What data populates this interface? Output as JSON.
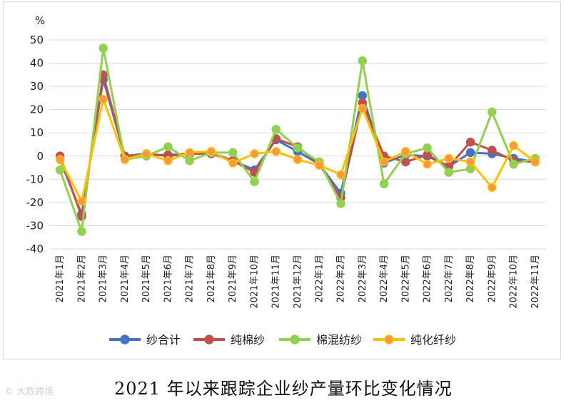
{
  "caption": "2021 年以来跟踪企业纱产量环比变化情况",
  "watermark": "© 大数跨境",
  "chart_data": {
    "type": "line",
    "unit_label": "%",
    "ylim": [
      -40,
      50
    ],
    "yticks": [
      -40,
      -30,
      -20,
      -10,
      0,
      10,
      20,
      30,
      40,
      50
    ],
    "grid": true,
    "legend_position": "bottom",
    "categories": [
      "2021年1月",
      "2021年2月",
      "2021年3月",
      "2021年4月",
      "2021年5月",
      "2021年6月",
      "2021年7月",
      "2021年8月",
      "2021年9月",
      "2021年10月",
      "2021年11月",
      "2021年12月",
      "2022年1月",
      "2022年2月",
      "2022年3月",
      "2022年4月",
      "2022年5月",
      "2022年6月",
      "2022年7月",
      "2022年8月",
      "2022年9月",
      "2022年10月",
      "2022年11月"
    ],
    "series": [
      {
        "name": "纱合计",
        "color": "#4472c4",
        "values": [
          -1.5,
          -25,
          33,
          0,
          1,
          0,
          1,
          1.5,
          -2,
          -6,
          7,
          2,
          -3.5,
          -16,
          26,
          -3,
          0.5,
          0,
          -4.5,
          1.5,
          1,
          -1,
          -2.5
        ]
      },
      {
        "name": "纯棉纱",
        "color": "#c0504d",
        "values": [
          0,
          -26,
          35,
          0,
          0.5,
          0.5,
          1,
          1,
          -2,
          -7,
          7.5,
          4,
          -3.5,
          -18,
          23,
          0,
          -2.5,
          0.5,
          -4.5,
          6,
          2.5,
          -2,
          -2.5
        ]
      },
      {
        "name": "棉混纺纱",
        "color": "#92d050",
        "values": [
          -6,
          -32.5,
          46.5,
          -1.5,
          0,
          4,
          -2,
          1.5,
          1.5,
          -11,
          11.5,
          3.5,
          -2.5,
          -20.5,
          41,
          -12,
          1,
          3.5,
          -7,
          -5.5,
          19,
          -3.5,
          -1
        ]
      },
      {
        "name": "纯化纤纱",
        "color": "#ffc000",
        "marker_fill": "#f79646",
        "values": [
          -1.5,
          -19.5,
          24.5,
          -1.5,
          1,
          -2,
          1.5,
          2,
          -3,
          1,
          2,
          -1.5,
          -4,
          -8,
          20.5,
          -2.5,
          2,
          -3.5,
          -1,
          -2.5,
          -13.5,
          4.5,
          -2.5
        ]
      }
    ]
  }
}
